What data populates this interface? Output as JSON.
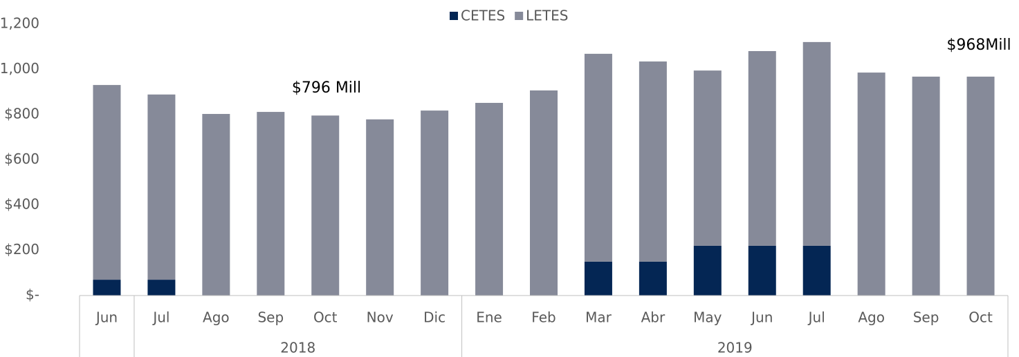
{
  "chart_data": {
    "type": "stacked_bar",
    "categories": [
      "Jun",
      "Jul",
      "Ago",
      "Sep",
      "Oct",
      "Nov",
      "Dic",
      "Ene",
      "Feb",
      "Mar",
      "Abr",
      "May",
      "Jun",
      "Jul",
      "Ago",
      "Sep",
      "Oct"
    ],
    "groups": [
      null,
      "2018",
      "2018",
      "2018",
      "2018",
      "2018",
      "2018",
      "2019",
      "2019",
      "2019",
      "2019",
      "2019",
      "2019",
      "2019",
      "2019",
      "2019",
      "2019"
    ],
    "series": [
      {
        "name": "CETES",
        "color": "#042654",
        "values": [
          70,
          70,
          0,
          0,
          0,
          0,
          0,
          0,
          0,
          150,
          150,
          220,
          220,
          220,
          0,
          0,
          0
        ]
      },
      {
        "name": "LETES",
        "color": "#868a99",
        "values": [
          861,
          819,
          803,
          812,
          796,
          779,
          818,
          852,
          907,
          919,
          885,
          775,
          861,
          901,
          986,
          968,
          968
        ]
      }
    ],
    "ylim": [
      0,
      1200
    ],
    "yticks": [
      {
        "value": 0,
        "label": "$-"
      },
      {
        "value": 200,
        "label": "$200"
      },
      {
        "value": 400,
        "label": "$400"
      },
      {
        "value": 600,
        "label": "$600"
      },
      {
        "value": 800,
        "label": "$800"
      },
      {
        "value": 1000,
        "label": "$1,000"
      },
      {
        "value": 1200,
        "label": "$1,200"
      }
    ],
    "annotations": [
      "$796 Mill",
      "$968Mill"
    ],
    "legend": "top"
  }
}
